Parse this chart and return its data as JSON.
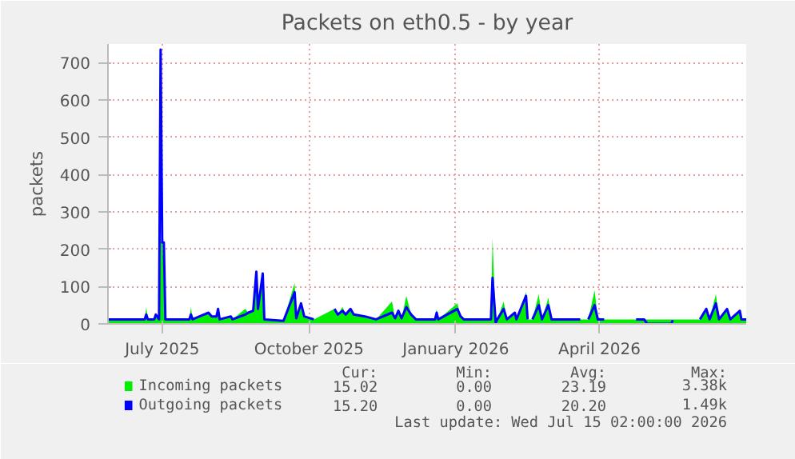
{
  "chart_data": {
    "type": "area",
    "title": "Packets on eth0.5 - by year",
    "ylabel": "packets",
    "x": [
      "2025-05-28",
      "2025-06-20",
      "2025-06-21",
      "2025-06-22",
      "2025-06-26",
      "2025-06-27",
      "2025-06-29",
      "2025-06-30",
      "2025-07-01",
      "2025-07-02",
      "2025-07-03",
      "2025-07-18",
      "2025-07-19",
      "2025-07-20",
      "2025-07-30",
      "2025-08-01",
      "2025-08-04",
      "2025-08-05",
      "2025-08-06",
      "2025-08-13",
      "2025-08-14",
      "2025-08-22",
      "2025-08-24",
      "2025-08-27",
      "2025-08-29",
      "2025-08-30",
      "2025-09-02",
      "2025-09-03",
      "2025-09-15",
      "2025-09-22",
      "2025-09-23",
      "2025-09-26",
      "2025-09-28",
      "2025-10-04",
      "2025-10-10",
      "2025-10-17",
      "2025-10-19",
      "2025-10-22",
      "2025-10-24",
      "2025-10-27",
      "2025-10-29",
      "2025-11-05",
      "2025-11-12",
      "2025-11-22",
      "2025-11-24",
      "2025-11-26",
      "2025-11-28",
      "2025-12-01",
      "2025-12-04",
      "2025-12-07",
      "2025-12-19",
      "2025-12-20",
      "2025-12-21",
      "2026-01-02",
      "2026-01-04",
      "2026-01-06",
      "2026-01-23",
      "2026-01-24",
      "2026-01-26",
      "2026-01-27",
      "2026-01-31",
      "2026-02-02",
      "2026-02-07",
      "2026-02-08",
      "2026-02-14",
      "2026-02-15",
      "2026-02-17",
      "2026-02-18",
      "2026-02-22",
      "2026-02-24",
      "2026-02-28",
      "2026-03-02",
      "2026-03-20",
      "2026-03-22",
      "2026-03-25",
      "2026-03-29",
      "2026-03-31",
      "2026-04-04",
      "2026-04-15",
      "2026-04-24",
      "2026-04-29",
      "2026-05-01",
      "2026-05-16",
      "2026-05-17",
      "2026-05-25",
      "2026-06-03",
      "2026-06-07",
      "2026-06-09",
      "2026-06-13",
      "2026-06-15",
      "2026-06-20",
      "2026-06-22",
      "2026-06-28",
      "2026-06-29",
      "2026-07-02"
    ],
    "series": [
      {
        "name": "Incoming packets",
        "color": "#00ee00",
        "values": [
          12,
          12,
          45,
          12,
          12,
          25,
          12,
          220,
          220,
          150,
          12,
          12,
          45,
          12,
          30,
          20,
          20,
          40,
          12,
          20,
          12,
          40,
          30,
          35,
          140,
          40,
          135,
          12,
          8,
          110,
          15,
          55,
          20,
          12,
          null,
          40,
          25,
          45,
          25,
          40,
          25,
          20,
          12,
          60,
          15,
          35,
          15,
          75,
          25,
          12,
          12,
          40,
          12,
          55,
          20,
          12,
          12,
          230,
          3,
          12,
          60,
          12,
          30,
          12,
          85,
          12,
          null,
          12,
          80,
          12,
          70,
          12,
          12,
          null,
          12,
          90,
          12,
          12,
          null,
          12,
          12,
          null,
          null,
          null,
          null,
          12,
          45,
          12,
          80,
          12,
          40,
          12,
          35,
          12,
          12
        ]
      },
      {
        "name": "Outgoing packets",
        "type": "line",
        "color": "#0000ff",
        "values": [
          12,
          12,
          25,
          12,
          12,
          25,
          12,
          735,
          218,
          218,
          12,
          12,
          25,
          12,
          30,
          20,
          20,
          40,
          12,
          20,
          12,
          25,
          30,
          35,
          140,
          40,
          135,
          12,
          8,
          85,
          15,
          55,
          20,
          12,
          null,
          40,
          25,
          35,
          25,
          40,
          25,
          20,
          12,
          30,
          15,
          35,
          15,
          45,
          25,
          12,
          12,
          30,
          12,
          40,
          20,
          12,
          12,
          123,
          3,
          12,
          40,
          12,
          30,
          12,
          75,
          12,
          null,
          12,
          50,
          12,
          50,
          12,
          12,
          null,
          12,
          50,
          12,
          12,
          null,
          12,
          12,
          0,
          0,
          10,
          null,
          12,
          40,
          12,
          55,
          12,
          40,
          12,
          35,
          12,
          12
        ]
      }
    ],
    "xlim": [
      "2025-05-28",
      "2026-07-02"
    ],
    "xticks": [
      {
        "value": "2025-07-01",
        "label": "July 2025"
      },
      {
        "value": "2025-10-01",
        "label": "October 2025"
      },
      {
        "value": "2026-01-01",
        "label": "January 2026"
      },
      {
        "value": "2026-04-01",
        "label": "April 2026"
      }
    ],
    "ylim": [
      0,
      750
    ],
    "yticks": [
      0,
      100,
      200,
      300,
      400,
      500,
      600,
      700
    ],
    "grid": true,
    "legend": "bottom",
    "annotations": [
      "Cur:",
      "Min:",
      "Avg:",
      "Max:",
      "15.02",
      "0.00",
      "23.19",
      "3.38k",
      "15.20",
      "0.00",
      "20.20",
      "1.49k",
      "Last update: Wed Jul 15 02:00:00 2026"
    ]
  }
}
